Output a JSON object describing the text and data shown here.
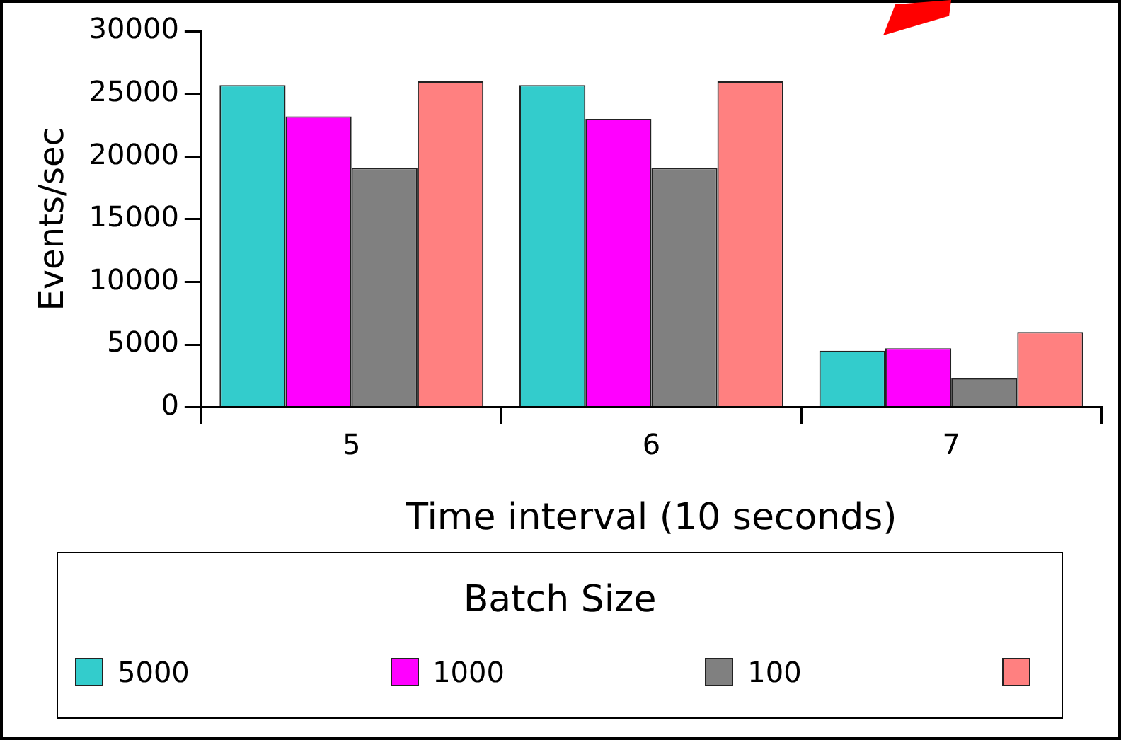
{
  "chart_data": {
    "type": "bar",
    "xlabel": "Time interval (10 seconds)",
    "ylabel": "Events/sec",
    "legend_title": "Batch Size",
    "categories": [
      "5",
      "6",
      "7"
    ],
    "series": [
      {
        "name": "5000",
        "color": "#33cccc",
        "values": [
          25700,
          25700,
          4500
        ]
      },
      {
        "name": "1000",
        "color": "#ff00ff",
        "values": [
          23200,
          23000,
          4700
        ]
      },
      {
        "name": "100",
        "color": "#808080",
        "values": [
          19100,
          19100,
          2300
        ]
      },
      {
        "color": "#ff8080",
        "values": [
          26000,
          26000,
          6000
        ]
      }
    ],
    "ylim": [
      0,
      30000
    ],
    "yticks": [
      0,
      5000,
      10000,
      15000,
      20000,
      25000,
      30000
    ],
    "grid": false,
    "legend": "bottom"
  }
}
